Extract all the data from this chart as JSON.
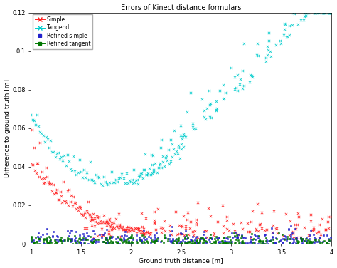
{
  "title": "Errors of Kinect distance formulars",
  "xlabel": "Ground truth distance [m]",
  "ylabel": "Difference to ground truth [m]",
  "xlim": [
    1.0,
    4.0
  ],
  "ylim": [
    0,
    0.12
  ],
  "yticks": [
    0,
    0.02,
    0.04,
    0.06,
    0.08,
    0.1,
    0.12
  ],
  "xticks": [
    1.0,
    1.5,
    2.0,
    2.5,
    3.0,
    3.5,
    4.0
  ],
  "xtick_labels": [
    "1",
    "1.5",
    "2",
    "2.5",
    "3",
    "3.5",
    "4"
  ],
  "ytick_labels": [
    "0",
    "0.02",
    "0.04",
    "0.06",
    "0.08",
    "0.1",
    "0.12"
  ],
  "legend": [
    "Simple",
    "Tangend",
    "Refined simple",
    "Refined tangent"
  ],
  "colors": {
    "simple": "#FF2222",
    "tangend": "#00CCCC",
    "refined_simple": "#2222CC",
    "refined_tangent": "#007700"
  },
  "background": "#FFFFFF",
  "figsize": [
    4.74,
    3.76
  ],
  "dpi": 100
}
